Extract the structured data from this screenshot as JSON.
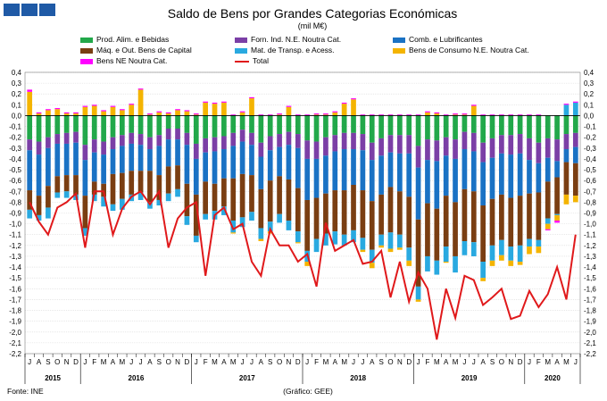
{
  "chart_data": {
    "type": "bar",
    "title": "Saldo de Bens por Grandes Categorias Económicas",
    "unit": "(mil M€)",
    "source": "Fonte: INE",
    "credit": "(Gráfico: GEE)",
    "ylim": [
      -2.2,
      0.4
    ],
    "yticks": [
      "0,4",
      "0,3",
      "0,2",
      "0,1",
      "0,0",
      "-0,1",
      "-0,2",
      "-0,3",
      "-0,4",
      "-0,5",
      "-0,6",
      "-0,7",
      "-0,8",
      "-0,9",
      "-1,0",
      "-1,1",
      "-1,2",
      "-1,3",
      "-1,4",
      "-1,5",
      "-1,6",
      "-1,7",
      "-1,8",
      "-1,9",
      "-2,0",
      "-2,1",
      "-2,2"
    ],
    "legend_columns": 3,
    "months": [
      "J",
      "A",
      "S",
      "O",
      "N",
      "D",
      "J",
      "F",
      "M",
      "A",
      "M",
      "J",
      "J",
      "A",
      "S",
      "O",
      "N",
      "D",
      "J",
      "F",
      "M",
      "A",
      "M",
      "J",
      "J",
      "A",
      "S",
      "O",
      "N",
      "D",
      "J",
      "F",
      "M",
      "A",
      "M",
      "J",
      "J",
      "A",
      "S",
      "O",
      "N",
      "D",
      "J",
      "F",
      "M",
      "A",
      "M",
      "J",
      "J",
      "A",
      "S",
      "O",
      "N",
      "D",
      "J",
      "F",
      "M",
      "A",
      "M",
      "J"
    ],
    "years": [
      {
        "label": "2015",
        "start": 0,
        "end": 5
      },
      {
        "label": "2016",
        "start": 6,
        "end": 17
      },
      {
        "label": "2017",
        "start": 18,
        "end": 29
      },
      {
        "label": "2018",
        "start": 30,
        "end": 41
      },
      {
        "label": "2019",
        "start": 42,
        "end": 53
      },
      {
        "label": "2020",
        "start": 54,
        "end": 59
      }
    ],
    "series": [
      {
        "name": "Prod. Alim. e Bebidas",
        "color": "#22a84a",
        "values": [
          -0.22,
          -0.24,
          -0.2,
          -0.17,
          -0.16,
          -0.15,
          -0.27,
          -0.22,
          -0.24,
          -0.2,
          -0.18,
          -0.16,
          -0.17,
          -0.2,
          -0.18,
          -0.12,
          -0.12,
          -0.16,
          -0.26,
          -0.21,
          -0.2,
          -0.19,
          -0.16,
          -0.13,
          -0.16,
          -0.25,
          -0.19,
          -0.17,
          -0.15,
          -0.17,
          -0.23,
          -0.24,
          -0.2,
          -0.18,
          -0.16,
          -0.16,
          -0.17,
          -0.25,
          -0.21,
          -0.18,
          -0.18,
          -0.18,
          -0.28,
          -0.22,
          -0.23,
          -0.2,
          -0.22,
          -0.15,
          -0.16,
          -0.25,
          -0.21,
          -0.18,
          -0.18,
          -0.17,
          -0.21,
          -0.25,
          -0.21,
          -0.22,
          -0.17,
          -0.16
        ]
      },
      {
        "name": "Forn. Ind. N.E. Noutra Cat.",
        "color": "#7b3fa6",
        "values": [
          -0.1,
          -0.12,
          -0.1,
          -0.09,
          -0.1,
          -0.1,
          -0.14,
          -0.12,
          -0.12,
          -0.11,
          -0.1,
          -0.1,
          -0.1,
          -0.11,
          -0.1,
          -0.1,
          -0.1,
          -0.11,
          -0.14,
          -0.13,
          -0.13,
          -0.12,
          -0.12,
          -0.11,
          -0.11,
          -0.13,
          -0.13,
          -0.12,
          -0.12,
          -0.13,
          -0.17,
          -0.16,
          -0.17,
          -0.15,
          -0.15,
          -0.15,
          -0.15,
          -0.16,
          -0.16,
          -0.16,
          -0.17,
          -0.17,
          -0.2,
          -0.19,
          -0.19,
          -0.17,
          -0.18,
          -0.16,
          -0.17,
          -0.18,
          -0.18,
          -0.17,
          -0.18,
          -0.18,
          -0.2,
          -0.19,
          -0.18,
          -0.2,
          -0.14,
          -0.13
        ]
      },
      {
        "name": "Comb. e Lubrificantes",
        "color": "#1a72c4",
        "values": [
          -0.37,
          -0.38,
          -0.35,
          -0.3,
          -0.29,
          -0.3,
          -0.33,
          -0.27,
          -0.27,
          -0.23,
          -0.25,
          -0.25,
          -0.24,
          -0.2,
          -0.27,
          -0.25,
          -0.24,
          -0.36,
          -0.33,
          -0.27,
          -0.3,
          -0.27,
          -0.3,
          -0.3,
          -0.28,
          -0.3,
          -0.28,
          -0.27,
          -0.32,
          -0.37,
          -0.38,
          -0.36,
          -0.35,
          -0.36,
          -0.38,
          -0.33,
          -0.37,
          -0.38,
          -0.36,
          -0.32,
          -0.35,
          -0.4,
          -0.48,
          -0.4,
          -0.44,
          -0.37,
          -0.4,
          -0.37,
          -0.37,
          -0.4,
          -0.38,
          -0.38,
          -0.4,
          -0.39,
          -0.31,
          -0.27,
          -0.22,
          -0.15,
          -0.12,
          -0.15
        ]
      },
      {
        "name": "Máq. e Out. Bens de Capital",
        "color": "#7a3e12",
        "values": [
          -0.18,
          -0.18,
          -0.2,
          -0.15,
          -0.15,
          -0.18,
          -0.3,
          -0.12,
          -0.12,
          -0.28,
          -0.24,
          -0.22,
          -0.2,
          -0.29,
          -0.23,
          -0.25,
          -0.22,
          -0.3,
          -0.38,
          -0.3,
          -0.25,
          -0.26,
          -0.39,
          -0.4,
          -0.34,
          -0.36,
          -0.38,
          -0.35,
          -0.38,
          -0.4,
          -0.47,
          -0.38,
          -0.37,
          -0.38,
          -0.41,
          -0.42,
          -0.44,
          -0.45,
          -0.37,
          -0.42,
          -0.4,
          -0.47,
          -0.62,
          -0.49,
          -0.48,
          -0.47,
          -0.5,
          -0.48,
          -0.47,
          -0.52,
          -0.43,
          -0.42,
          -0.45,
          -0.46,
          -0.42,
          -0.44,
          -0.34,
          -0.34,
          -0.3,
          -0.3
        ]
      },
      {
        "name": "Mat. de Transp. e Acess.",
        "color": "#29a9e0",
        "values": [
          -0.08,
          -0.05,
          -0.1,
          -0.05,
          -0.06,
          -0.05,
          -0.07,
          -0.06,
          -0.09,
          -0.06,
          -0.1,
          -0.06,
          -0.07,
          -0.06,
          -0.05,
          -0.07,
          -0.07,
          -0.08,
          -0.06,
          -0.05,
          -0.08,
          -0.08,
          -0.11,
          -0.09,
          -0.08,
          -0.1,
          -0.09,
          -0.08,
          -0.09,
          -0.1,
          -0.1,
          -0.12,
          -0.11,
          -0.12,
          -0.1,
          -0.11,
          -0.11,
          -0.12,
          -0.1,
          -0.15,
          -0.12,
          -0.12,
          -0.12,
          -0.14,
          -0.13,
          -0.14,
          -0.15,
          -0.13,
          -0.13,
          -0.15,
          -0.14,
          -0.14,
          -0.13,
          -0.15,
          -0.07,
          -0.06,
          -0.05,
          -0.01,
          0.1,
          0.12
        ]
      },
      {
        "name": "Bens de Consumo N.E. Noutra Cat.",
        "color": "#f4b400",
        "values": [
          0.22,
          0.02,
          0.05,
          0.06,
          0.02,
          0.02,
          0.08,
          0.09,
          0.04,
          0.08,
          0.05,
          0.1,
          0.24,
          0.01,
          0.03,
          0.02,
          0.05,
          0.04,
          0.01,
          0.12,
          0.11,
          0.12,
          -0.01,
          0.03,
          0.16,
          -0.02,
          -0.02,
          0.01,
          0.08,
          -0.01,
          -0.04,
          0.01,
          0.01,
          0.03,
          0.11,
          0.15,
          -0.02,
          -0.05,
          -0.02,
          -0.03,
          -0.02,
          -0.05,
          -0.02,
          0.03,
          0.02,
          -0.01,
          0.01,
          0.01,
          0.09,
          -0.03,
          -0.05,
          -0.05,
          -0.05,
          -0.03,
          -0.07,
          -0.06,
          -0.05,
          -0.05,
          -0.09,
          -0.06
        ]
      },
      {
        "name": "Bens NE Noutra Cat.",
        "color": "#ff00ff",
        "values": [
          0.02,
          0.01,
          0.01,
          0.01,
          0.01,
          0.01,
          0.01,
          0.01,
          0.01,
          0.01,
          0.01,
          0.01,
          0.01,
          0.01,
          0.01,
          0.01,
          0.01,
          0.01,
          0.01,
          0.01,
          0.01,
          0.01,
          0.01,
          0.01,
          0.01,
          0.01,
          0.01,
          0.01,
          0.01,
          0.01,
          0.01,
          0.01,
          0.01,
          0.01,
          0.01,
          0.01,
          0.01,
          0.01,
          0.01,
          0.01,
          0.01,
          0.01,
          0.01,
          0.01,
          0.01,
          0.01,
          0.01,
          0.01,
          0.01,
          0.01,
          0.01,
          0.01,
          0.01,
          0.01,
          0.01,
          0.01,
          -0.01,
          -0.02,
          0.01,
          0.01
        ]
      }
    ],
    "total": {
      "name": "Total",
      "color": "#e0191b",
      "values": [
        -0.8,
        -0.98,
        -1.1,
        -0.85,
        -0.8,
        -0.72,
        -1.22,
        -0.7,
        -0.7,
        -1.1,
        -0.86,
        -0.75,
        -0.7,
        -0.82,
        -0.7,
        -1.22,
        -0.95,
        -0.85,
        -0.8,
        -1.48,
        -0.92,
        -0.85,
        -1.05,
        -1.0,
        -1.35,
        -1.48,
        -1.05,
        -1.2,
        -1.2,
        -1.35,
        -1.28,
        -1.58,
        -0.99,
        -1.25,
        -1.2,
        -1.15,
        -1.37,
        -1.35,
        -1.25,
        -1.68,
        -1.35,
        -1.72,
        -1.45,
        -1.6,
        -2.07,
        -1.6,
        -1.87,
        -1.48,
        -1.52,
        -1.75,
        -1.68,
        -1.6,
        -1.88,
        -1.85,
        -1.62,
        -1.77,
        -1.65,
        -1.4,
        -1.7,
        -1.1
      ]
    }
  }
}
